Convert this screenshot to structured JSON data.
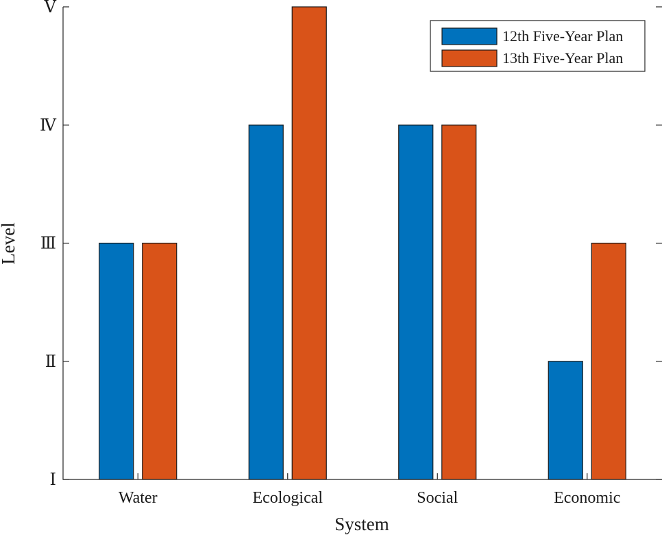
{
  "chart_data": {
    "type": "bar",
    "title": "",
    "xlabel": "System",
    "ylabel": "Level",
    "categories": [
      "Water",
      "Ecological",
      "Social",
      "Economic"
    ],
    "y_ticks": [
      {
        "value": 1,
        "label": "Ⅰ"
      },
      {
        "value": 2,
        "label": "Ⅱ"
      },
      {
        "value": 3,
        "label": "Ⅲ"
      },
      {
        "value": 4,
        "label": "Ⅳ"
      },
      {
        "value": 5,
        "label": "Ⅴ"
      }
    ],
    "ylim": [
      1,
      5
    ],
    "grid": false,
    "legend_position": "top-right",
    "series": [
      {
        "name": "12th Five-Year Plan",
        "color": "#0072BD",
        "values": [
          3,
          4,
          4,
          2
        ]
      },
      {
        "name": "13th Five-Year Plan",
        "color": "#D95319",
        "values": [
          3,
          5,
          4,
          3
        ]
      }
    ]
  }
}
